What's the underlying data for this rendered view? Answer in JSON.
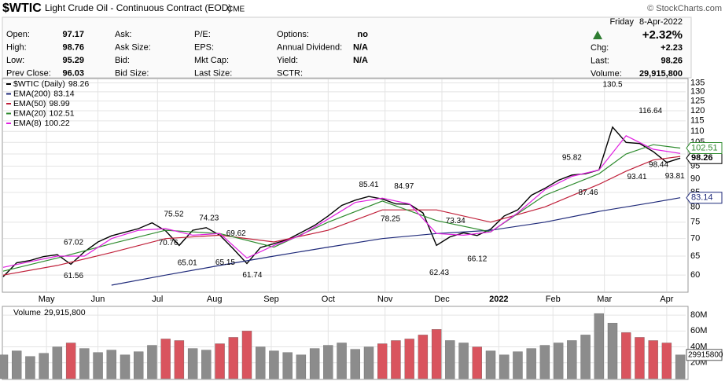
{
  "header": {
    "symbol": "$WTIC",
    "name": "Light Crude Oil - Continuous Contract (EOD)",
    "exchange": "CME",
    "source": "© StockCharts.com",
    "columns": [
      [
        {
          "label": "Open:",
          "value": "97.17"
        },
        {
          "label": "High:",
          "value": "98.76"
        },
        {
          "label": "Low:",
          "value": "95.29"
        },
        {
          "label": "Prev Close:",
          "value": "96.03"
        }
      ],
      [
        {
          "label": "Ask:"
        },
        {
          "label": "Ask Size:"
        },
        {
          "label": "Bid:"
        },
        {
          "label": "Bid Size:"
        }
      ],
      [
        {
          "label": "P/E:"
        },
        {
          "label": "EPS:"
        },
        {
          "label": "Mkt Cap:"
        },
        {
          "label": "Last Size:"
        }
      ],
      [
        {
          "label": "Options:",
          "value": "no"
        },
        {
          "label": "Annual Dividend:",
          "value": "N/A"
        },
        {
          "label": "Yield:",
          "value": "N/A"
        },
        {
          "label": "SCTR:"
        }
      ]
    ],
    "quote": {
      "day": "Friday",
      "date": "8-Apr-2022",
      "change_pct": "+2.32%",
      "fields": [
        {
          "label": "Chg:",
          "value": "+2.23"
        },
        {
          "label": "Last:",
          "value": "98.26"
        },
        {
          "label": "Volume:",
          "value": "29,915,800"
        }
      ]
    }
  },
  "chart_data": [
    {
      "type": "line",
      "log_scale": true,
      "grid": true,
      "xlim": [
        0,
        252
      ],
      "xticks": [
        {
          "value": 16,
          "label": "May"
        },
        {
          "value": 35,
          "label": "Jun"
        },
        {
          "value": 57,
          "label": "Jul"
        },
        {
          "value": 78,
          "label": "Aug"
        },
        {
          "value": 99,
          "label": "Sep"
        },
        {
          "value": 120,
          "label": "Oct"
        },
        {
          "value": 141,
          "label": "Nov"
        },
        {
          "value": 162,
          "label": "Dec"
        },
        {
          "value": 183,
          "label": "2022"
        },
        {
          "value": 203,
          "label": "Feb"
        },
        {
          "value": 222,
          "label": "Mar"
        },
        {
          "value": 245,
          "label": "Apr"
        }
      ],
      "ylim": [
        56,
        137
      ],
      "yticks": [
        60,
        65,
        70,
        75,
        80,
        85,
        90,
        95,
        100,
        105,
        110,
        115,
        120,
        125,
        130,
        135
      ],
      "series": [
        {
          "name": "$WTIC (Daily)",
          "color": "#000000",
          "tag": true,
          "x": [
            0,
            5,
            10,
            15,
            20,
            25,
            30,
            35,
            40,
            45,
            50,
            55,
            60,
            65,
            70,
            75,
            80,
            85,
            90,
            95,
            100,
            105,
            110,
            115,
            120,
            125,
            130,
            135,
            140,
            145,
            150,
            155,
            160,
            165,
            170,
            175,
            180,
            185,
            190,
            195,
            200,
            205,
            210,
            215,
            220,
            225,
            230,
            235,
            240,
            245,
            250
          ],
          "values": [
            59.6,
            63.2,
            63.8,
            64.9,
            65.4,
            62.8,
            66.2,
            69.0,
            70.8,
            71.9,
            73.0,
            74.8,
            72.3,
            68.0,
            72.5,
            73.3,
            71.0,
            67.0,
            63.0,
            67.4,
            68.5,
            69.7,
            71.8,
            74.0,
            77.0,
            80.5,
            82.3,
            83.6,
            82.7,
            81.0,
            80.9,
            78.0,
            68.0,
            70.5,
            71.7,
            70.9,
            72.8,
            77.0,
            79.0,
            84.0,
            86.5,
            89.5,
            91.5,
            92.0,
            93.5,
            112.0,
            105.0,
            104.5,
            101.0,
            96.5,
            98.26
          ]
        },
        {
          "name": "EMA(200)",
          "color": "#1f2a7a",
          "tag": true,
          "x": [
            40,
            60,
            80,
            100,
            120,
            140,
            160,
            180,
            200,
            220,
            240,
            250
          ],
          "values": [
            57.5,
            60,
            62.5,
            65,
            67.5,
            70,
            71.5,
            72.5,
            75,
            78.5,
            81.5,
            83.14
          ]
        },
        {
          "name": "EMA(50)",
          "color": "#c0203a",
          "x": [
            0,
            20,
            40,
            60,
            80,
            100,
            120,
            140,
            160,
            180,
            200,
            220,
            230,
            240,
            250
          ],
          "values": [
            60,
            62.5,
            66,
            70,
            71,
            69,
            72.5,
            79,
            79,
            75,
            80,
            88,
            93,
            97.5,
            98.99
          ]
        },
        {
          "name": "EMA(20)",
          "color": "#2e8b2e",
          "tag": true,
          "x": [
            0,
            20,
            40,
            60,
            80,
            100,
            120,
            140,
            160,
            180,
            200,
            220,
            230,
            240,
            250
          ],
          "values": [
            61,
            64.5,
            68.5,
            72.5,
            71.5,
            67.5,
            75,
            82,
            75.5,
            72,
            84,
            92,
            100,
            104,
            102.51
          ]
        },
        {
          "name": "EMA(8)",
          "color": "#e020e0",
          "x": [
            0,
            10,
            20,
            30,
            40,
            50,
            60,
            70,
            80,
            90,
            100,
            110,
            120,
            130,
            140,
            150,
            160,
            170,
            180,
            190,
            200,
            210,
            220,
            230,
            240,
            250
          ],
          "values": [
            62,
            63.5,
            65,
            65,
            70,
            72.5,
            73,
            71,
            71.5,
            64.5,
            68,
            71,
            76,
            81.5,
            83,
            81,
            71.5,
            71,
            72,
            78,
            86,
            91,
            93.5,
            108,
            102,
            100.22
          ]
        }
      ],
      "annotations": [
        {
          "x": 26,
          "value": 67.02
        },
        {
          "x": 26,
          "value": 61.56
        },
        {
          "x": 63,
          "value": 75.52
        },
        {
          "x": 61,
          "value": 70.76
        },
        {
          "x": 76,
          "value": 74.23
        },
        {
          "x": 68,
          "value": 65.01
        },
        {
          "x": 86,
          "value": 69.62
        },
        {
          "x": 82,
          "value": 65.15
        },
        {
          "x": 92,
          "value": 61.74
        },
        {
          "x": 135,
          "value": 85.41
        },
        {
          "x": 148,
          "value": 84.97
        },
        {
          "x": 143,
          "value": 78.25
        },
        {
          "x": 167,
          "value": 73.34
        },
        {
          "x": 161,
          "value": 62.43
        },
        {
          "x": 175,
          "value": 66.12
        },
        {
          "x": 210,
          "value": 95.82
        },
        {
          "x": 216,
          "value": 87.46
        },
        {
          "x": 225,
          "value": 130.5
        },
        {
          "x": 239,
          "value": 116.64
        },
        {
          "x": 234,
          "value": 93.41
        },
        {
          "x": 242,
          "value": 98.44
        },
        {
          "x": 248,
          "value": 93.81
        }
      ]
    },
    {
      "type": "bar",
      "name": "Volume",
      "legend_value": "29,915,800",
      "up_color": "#8c8c8c",
      "down_color": "#d9545e",
      "ylim": [
        0,
        90000000
      ],
      "yticks": [
        {
          "value": 20000000,
          "label": "20M"
        },
        {
          "value": 40000000,
          "label": "40M"
        },
        {
          "value": 60000000,
          "label": "60M"
        },
        {
          "value": 80000000,
          "label": "80M"
        }
      ],
      "values": [
        30000000,
        35000000,
        28000000,
        32000000,
        40000000,
        45000000,
        38000000,
        33000000,
        36000000,
        30000000,
        34000000,
        42000000,
        50000000,
        48000000,
        38000000,
        36000000,
        44000000,
        52000000,
        60000000,
        40000000,
        35000000,
        33000000,
        30000000,
        38000000,
        42000000,
        45000000,
        37000000,
        40000000,
        44000000,
        48000000,
        50000000,
        55000000,
        62000000,
        48000000,
        45000000,
        40000000,
        35000000,
        30000000,
        34000000,
        38000000,
        42000000,
        45000000,
        48000000,
        55000000,
        82000000,
        70000000,
        58000000,
        52000000,
        48000000,
        45000000,
        29915800
      ]
    }
  ]
}
